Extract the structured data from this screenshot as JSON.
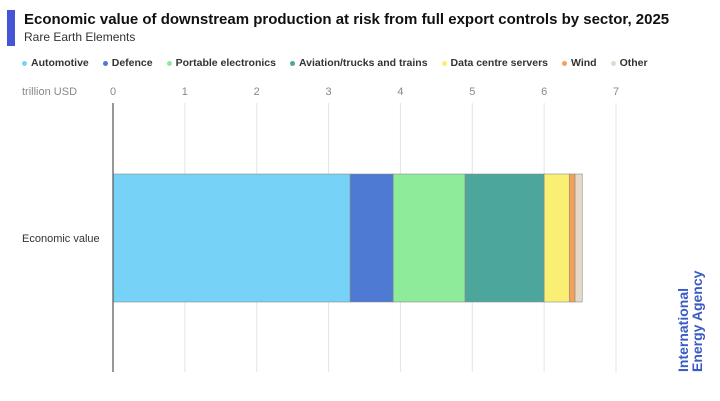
{
  "header": {
    "title": "Economic value of downstream production at risk from full export controls by sector, 2025",
    "subtitle": "Rare Earth Elements",
    "accent_color": "#4655d8"
  },
  "legend_label_color": "#333333",
  "brand": {
    "line1": "International",
    "line2": "Energy Agency",
    "color": "#3b5bc4"
  },
  "chart_data": {
    "type": "bar",
    "orientation": "horizontal",
    "stacked": true,
    "title": "Economic value of downstream production at risk from full export controls by sector, 2025",
    "subtitle": "Rare Earth Elements",
    "xlabel": "trillion USD",
    "ylabel": "",
    "categories": [
      "Economic value"
    ],
    "xlim": [
      0,
      7
    ],
    "xticks": [
      0,
      1,
      2,
      3,
      4,
      5,
      6,
      7
    ],
    "grid": true,
    "legend_position": "top",
    "series": [
      {
        "name": "Automotive",
        "values": [
          3.3
        ],
        "color": "#76d3f7"
      },
      {
        "name": "Defence",
        "values": [
          0.6
        ],
        "color": "#4f7ad3"
      },
      {
        "name": "Portable electronics",
        "values": [
          1.0
        ],
        "color": "#8deb9a"
      },
      {
        "name": "Aviation/trucks and trains",
        "values": [
          1.1
        ],
        "color": "#4ca69b"
      },
      {
        "name": "Data centre servers",
        "values": [
          0.35
        ],
        "color": "#f8ef73"
      },
      {
        "name": "Wind",
        "values": [
          0.08
        ],
        "color": "#f2a15b"
      },
      {
        "name": "Other",
        "values": [
          0.1
        ],
        "color": "#e6d9c7"
      }
    ]
  }
}
